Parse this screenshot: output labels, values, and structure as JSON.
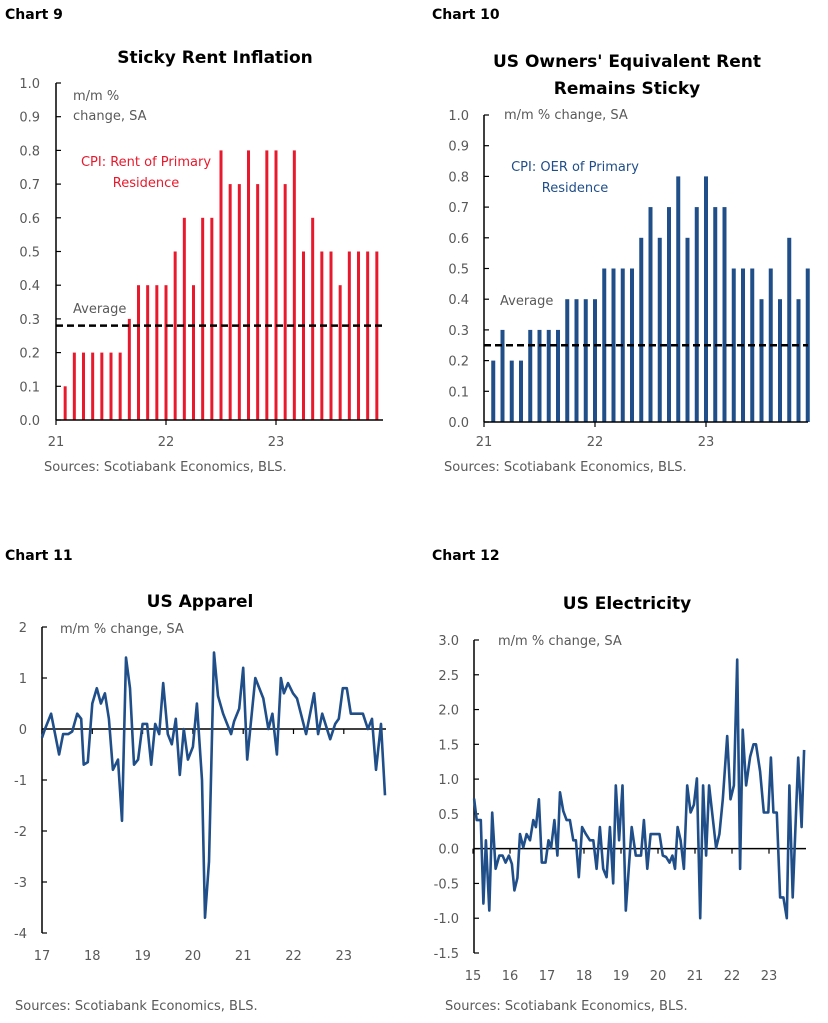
{
  "colors": {
    "red": "#e8192c",
    "blue": "#1f4e89",
    "axis": "#000000",
    "text": "#595959"
  },
  "chart_data": [
    {
      "label": "Chart 9",
      "type": "bar",
      "title": "Sticky Rent Inflation",
      "unit_lines": [
        "m/m %",
        "change, SA"
      ],
      "legend_lines": [
        "CPI: Rent of Primary",
        "Residence"
      ],
      "average_label": "Average",
      "average": 0.28,
      "ylim": [
        0,
        1.0
      ],
      "yticks": [
        "0.0",
        "0.1",
        "0.2",
        "0.3",
        "0.4",
        "0.5",
        "0.6",
        "0.7",
        "0.8",
        "0.9",
        "1.0"
      ],
      "xticks": [
        "21",
        "22",
        "23"
      ],
      "x_start": "21",
      "values": [
        0.1,
        0.2,
        0.2,
        0.2,
        0.2,
        0.2,
        0.2,
        0.3,
        0.4,
        0.4,
        0.4,
        0.4,
        0.5,
        0.6,
        0.4,
        0.6,
        0.6,
        0.8,
        0.7,
        0.7,
        0.8,
        0.7,
        0.8,
        0.8,
        0.7,
        0.8,
        0.5,
        0.6,
        0.5,
        0.5,
        0.4,
        0.5,
        0.5,
        0.5,
        0.5
      ],
      "source": "Sources: Scotiabank Economics, BLS."
    },
    {
      "label": "Chart 10",
      "type": "bar",
      "title_lines": [
        "US Owners' Equivalent Rent",
        "Remains Sticky"
      ],
      "unit_lines": [
        "m/m % change, SA"
      ],
      "legend_lines": [
        "CPI: OER of Primary",
        "Residence"
      ],
      "average_label": "Average",
      "average": 0.25,
      "ylim": [
        0,
        1.0
      ],
      "yticks": [
        "0.0",
        "0.1",
        "0.2",
        "0.3",
        "0.4",
        "0.5",
        "0.6",
        "0.7",
        "0.8",
        "0.9",
        "1.0"
      ],
      "xticks": [
        "21",
        "22",
        "23"
      ],
      "values": [
        0.2,
        0.3,
        0.2,
        0.2,
        0.3,
        0.3,
        0.3,
        0.3,
        0.4,
        0.4,
        0.4,
        0.4,
        0.5,
        0.5,
        0.5,
        0.5,
        0.6,
        0.7,
        0.6,
        0.7,
        0.8,
        0.6,
        0.7,
        0.8,
        0.7,
        0.7,
        0.5,
        0.5,
        0.5,
        0.4,
        0.5,
        0.4,
        0.6,
        0.4,
        0.5
      ],
      "source": "Sources: Scotiabank Economics, BLS."
    },
    {
      "label": "Chart 11",
      "type": "line",
      "title": "US Apparel",
      "unit_lines": [
        "m/m % change, SA"
      ],
      "ylim": [
        -4,
        2
      ],
      "yticks": [
        "2",
        "1",
        "0",
        "-1",
        "-2",
        "-3",
        "-4"
      ],
      "xlim": [
        17,
        23.85
      ],
      "xticks": [
        "17",
        "18",
        "19",
        "20",
        "21",
        "22",
        "23"
      ],
      "x": [
        17.0,
        17.06,
        17.18,
        17.34,
        17.42,
        17.52,
        17.6,
        17.7,
        17.78,
        17.83,
        17.91,
        18.0,
        18.09,
        18.17,
        18.25,
        18.33,
        18.41,
        18.51,
        18.59,
        18.67,
        18.75,
        18.83,
        18.91,
        19.0,
        19.09,
        19.17,
        19.25,
        19.33,
        19.41,
        19.5,
        19.58,
        19.66,
        19.74,
        19.82,
        19.9,
        20.0,
        20.08,
        20.18,
        20.24,
        20.32,
        20.42,
        20.5,
        20.6,
        20.76,
        20.82,
        20.92,
        21.0,
        21.08,
        21.24,
        21.4,
        21.5,
        21.58,
        21.67,
        21.75,
        21.81,
        21.89,
        21.99,
        22.07,
        22.25,
        22.41,
        22.49,
        22.57,
        22.73,
        22.83,
        22.9,
        22.98,
        23.06,
        23.14,
        23.38,
        23.48,
        23.56,
        23.64,
        23.74,
        23.82
      ],
      "y": [
        -0.17,
        0,
        0.3,
        -0.5,
        -0.1,
        -0.1,
        -0.05,
        0.3,
        0.2,
        -0.7,
        -0.65,
        0.5,
        0.8,
        0.5,
        0.7,
        0.2,
        -0.8,
        -0.6,
        -1.8,
        1.4,
        0.8,
        -0.7,
        -0.6,
        0.1,
        0.1,
        -0.7,
        0.1,
        -0.1,
        0.9,
        -0.1,
        -0.3,
        0.2,
        -0.9,
        0,
        -0.6,
        -0.35,
        0.5,
        -1.0,
        -3.7,
        -2.6,
        1.5,
        0.65,
        0.3,
        -0.1,
        0.15,
        0.4,
        1.2,
        -0.6,
        1.0,
        0.6,
        0,
        0.3,
        -0.5,
        1.0,
        0.7,
        0.9,
        0.7,
        0.6,
        -0.1,
        0.7,
        -0.1,
        0.3,
        -0.2,
        0.1,
        0.2,
        0.8,
        0.8,
        0.3,
        0.3,
        0,
        0.2,
        -0.8,
        0.1,
        -1.3
      ],
      "source": "Sources: Scotiabank Economics, BLS."
    },
    {
      "label": "Chart 12",
      "type": "line",
      "title": "US Electricity",
      "unit_lines": [
        "m/m % change, SA"
      ],
      "ylim": [
        -1.5,
        3.0
      ],
      "yticks": [
        "3.0",
        "2.5",
        "2.0",
        "1.5",
        "1.0",
        "0.5",
        "0.0",
        "-0.5",
        "-1.0",
        "-1.5"
      ],
      "xlim": [
        15,
        23.95
      ],
      "xticks": [
        "15",
        "16",
        "17",
        "18",
        "19",
        "20",
        "21",
        "22",
        "23"
      ],
      "x": [
        15.03,
        15.1,
        15.21,
        15.28,
        15.35,
        15.44,
        15.52,
        15.61,
        15.71,
        15.8,
        15.88,
        15.97,
        16.05,
        16.12,
        16.2,
        16.27,
        16.36,
        16.45,
        16.54,
        16.63,
        16.7,
        16.78,
        16.86,
        16.96,
        17.04,
        17.11,
        17.2,
        17.28,
        17.35,
        17.44,
        17.53,
        17.62,
        17.71,
        17.78,
        17.86,
        17.95,
        18.05,
        18.16,
        18.25,
        18.34,
        18.43,
        18.52,
        18.61,
        18.7,
        18.79,
        18.86,
        18.95,
        19.04,
        19.13,
        19.29,
        19.4,
        19.54,
        19.62,
        19.71,
        19.8,
        20.04,
        20.13,
        20.22,
        20.31,
        20.39,
        20.46,
        20.53,
        20.61,
        20.7,
        20.79,
        20.88,
        20.97,
        21.05,
        21.14,
        21.22,
        21.3,
        21.38,
        21.57,
        21.66,
        21.75,
        21.87,
        21.96,
        22.05,
        22.14,
        22.22,
        22.29,
        22.38,
        22.49,
        22.58,
        22.65,
        22.76,
        22.86,
        22.98,
        23.05,
        23.12,
        23.21,
        23.3,
        23.39,
        23.48,
        23.55,
        23.64,
        23.79,
        23.88,
        23.95
      ],
      "y": [
        0.72,
        0.41,
        0.41,
        -0.79,
        0.12,
        -0.89,
        0.52,
        -0.29,
        -0.1,
        -0.1,
        -0.2,
        -0.1,
        -0.22,
        -0.6,
        -0.42,
        0.21,
        0.02,
        0.21,
        0.12,
        0.41,
        0.31,
        0.71,
        -0.2,
        -0.2,
        0.12,
        0.01,
        0.41,
        -0.1,
        0.81,
        0.54,
        0.41,
        0.41,
        0.12,
        0.12,
        -0.41,
        0.31,
        0.21,
        0.12,
        0.12,
        -0.29,
        0.31,
        -0.29,
        -0.41,
        0.31,
        -0.5,
        0.91,
        0.12,
        0.91,
        -0.89,
        0.31,
        -0.1,
        -0.1,
        0.41,
        -0.29,
        0.21,
        0.21,
        -0.1,
        -0.12,
        -0.2,
        -0.1,
        -0.29,
        0.31,
        0.12,
        -0.29,
        0.91,
        0.52,
        0.63,
        1.01,
        -1.0,
        0.91,
        -0.1,
        0.91,
        0.01,
        0.21,
        0.71,
        1.62,
        0.71,
        0.91,
        2.72,
        -0.29,
        1.71,
        0.91,
        1.32,
        1.5,
        1.5,
        1.11,
        0.52,
        0.52,
        1.31,
        0.52,
        0.52,
        -0.7,
        -0.7,
        -1.0,
        0.91,
        -0.7,
        1.31,
        0.31,
        1.42
      ],
      "source": "Sources: Scotiabank Economics, BLS."
    }
  ]
}
